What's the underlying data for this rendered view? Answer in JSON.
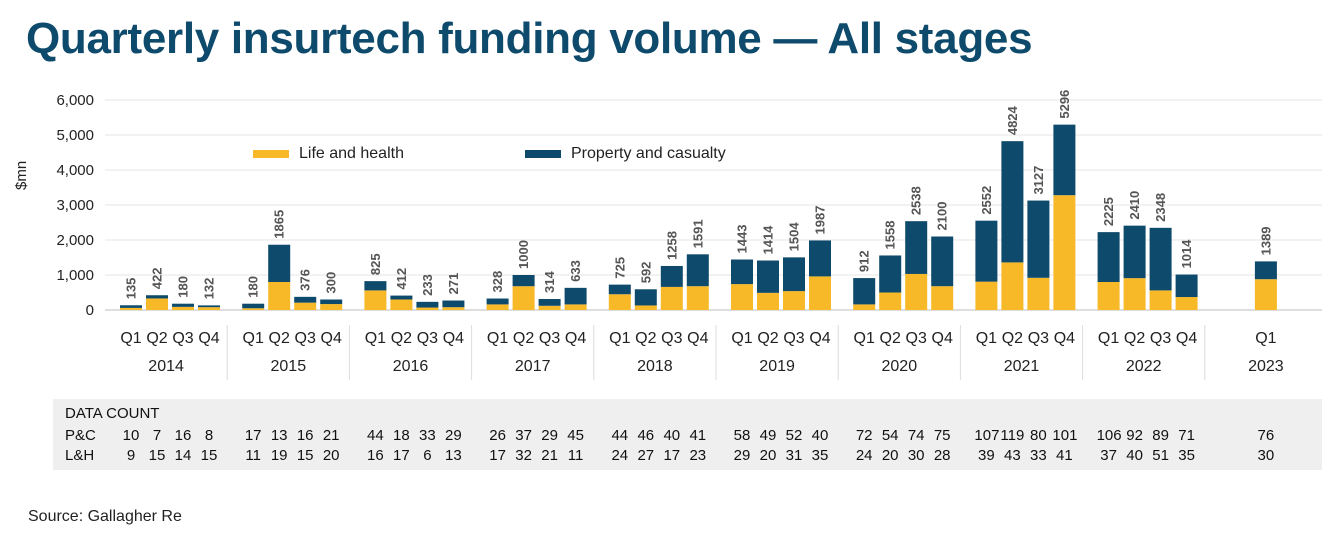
{
  "title": "Quarterly insurtech funding volume — All stages",
  "source": "Source: Gallagher Re",
  "colors": {
    "life_health": "#f7b928",
    "property_casualty": "#0e4a6b",
    "title": "#0e4a6b"
  },
  "chart_data": {
    "type": "bar",
    "stacked": true,
    "ylabel": "$mn",
    "ylim": [
      0,
      6000
    ],
    "yticks": [
      "0",
      "1,000",
      "2,000",
      "3,000",
      "4,000",
      "5,000",
      "6,000"
    ],
    "legend": [
      "Life and health",
      "Property and casualty"
    ],
    "years": [
      {
        "year": "2014",
        "quarters": [
          "Q1",
          "Q2",
          "Q3",
          "Q4"
        ]
      },
      {
        "year": "2015",
        "quarters": [
          "Q1",
          "Q2",
          "Q3",
          "Q4"
        ]
      },
      {
        "year": "2016",
        "quarters": [
          "Q1",
          "Q2",
          "Q3",
          "Q4"
        ]
      },
      {
        "year": "2017",
        "quarters": [
          "Q1",
          "Q2",
          "Q3",
          "Q4"
        ]
      },
      {
        "year": "2018",
        "quarters": [
          "Q1",
          "Q2",
          "Q3",
          "Q4"
        ]
      },
      {
        "year": "2019",
        "quarters": [
          "Q1",
          "Q2",
          "Q3",
          "Q4"
        ]
      },
      {
        "year": "2020",
        "quarters": [
          "Q1",
          "Q2",
          "Q3",
          "Q4"
        ]
      },
      {
        "year": "2021",
        "quarters": [
          "Q1",
          "Q2",
          "Q3",
          "Q4"
        ]
      },
      {
        "year": "2022",
        "quarters": [
          "Q1",
          "Q2",
          "Q3",
          "Q4"
        ]
      },
      {
        "year": "2023",
        "quarters": [
          "Q1"
        ]
      }
    ],
    "series": [
      {
        "name": "Life and health",
        "values": [
          60,
          330,
          90,
          80,
          50,
          800,
          210,
          170,
          560,
          300,
          70,
          80,
          160,
          680,
          120,
          160,
          450,
          130,
          660,
          680,
          740,
          490,
          540,
          960,
          160,
          500,
          1030,
          680,
          810,
          1360,
          920,
          3280,
          800,
          910,
          560,
          370,
          880
        ]
      },
      {
        "name": "Property and casualty",
        "values": [
          75,
          92,
          90,
          52,
          130,
          1065,
          166,
          130,
          265,
          112,
          163,
          191,
          168,
          320,
          194,
          473,
          275,
          462,
          598,
          911,
          703,
          924,
          964,
          1027,
          752,
          1058,
          1508,
          1420,
          1742,
          3464,
          2207,
          2016,
          1425,
          1500,
          1788,
          644,
          509
        ]
      }
    ],
    "totals": [
      "135",
      "422",
      "180",
      "132",
      "180",
      "1865",
      "376",
      "300",
      "825",
      "412",
      "233",
      "271",
      "328",
      "1000",
      "314",
      "633",
      "725",
      "592",
      "1258",
      "1591",
      "1443",
      "1414",
      "1504",
      "1987",
      "912",
      "1558",
      "2538",
      "2100",
      "2552",
      "4824",
      "3127",
      "5296",
      "2225",
      "2410",
      "2348",
      "1014",
      "1389"
    ]
  },
  "data_count": {
    "title": "DATA COUNT",
    "pc_label": "P&C",
    "lh_label": "L&H",
    "pc": [
      "10",
      "7",
      "16",
      "8",
      "17",
      "13",
      "16",
      "21",
      "44",
      "18",
      "33",
      "29",
      "26",
      "37",
      "29",
      "45",
      "44",
      "46",
      "40",
      "41",
      "58",
      "49",
      "52",
      "40",
      "72",
      "54",
      "74",
      "75",
      "107",
      "119",
      "80",
      "101",
      "106",
      "92",
      "89",
      "71",
      "76"
    ],
    "lh": [
      "9",
      "15",
      "14",
      "15",
      "11",
      "19",
      "15",
      "20",
      "16",
      "17",
      "6",
      "13",
      "17",
      "32",
      "21",
      "11",
      "24",
      "27",
      "17",
      "23",
      "29",
      "20",
      "31",
      "35",
      "24",
      "20",
      "30",
      "28",
      "39",
      "43",
      "33",
      "41",
      "37",
      "40",
      "51",
      "35",
      "30"
    ]
  }
}
